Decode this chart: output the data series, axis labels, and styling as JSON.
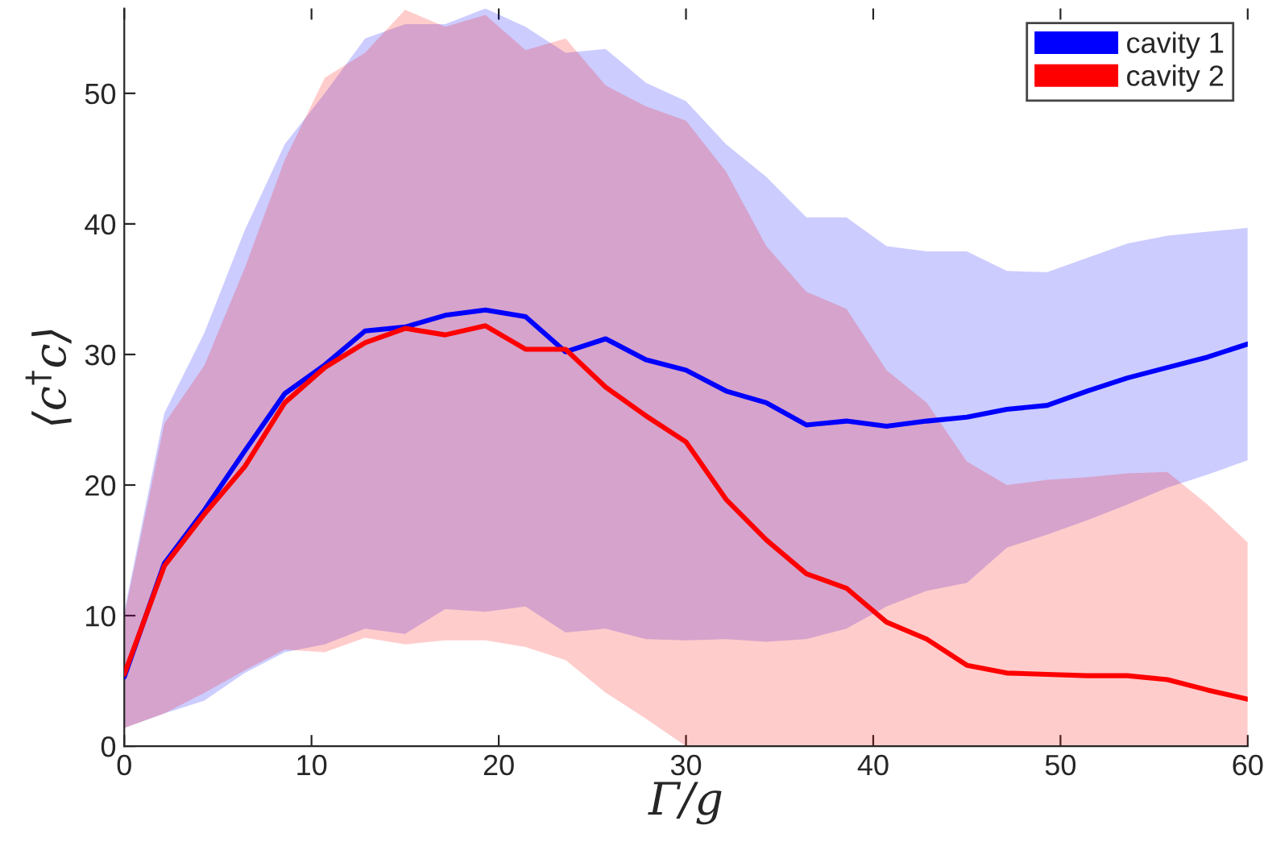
{
  "chart_data": {
    "type": "line",
    "xlabel": "Γ/g",
    "ylabel": "⟨c$^{†}$c⟩",
    "x": [
      0,
      2.14,
      4.29,
      6.43,
      8.57,
      10.71,
      12.86,
      15,
      17.14,
      19.29,
      21.43,
      23.57,
      25.71,
      27.86,
      30,
      32.14,
      34.29,
      36.43,
      38.57,
      40.71,
      42.86,
      45,
      47.14,
      49.29,
      51.43,
      53.57,
      55.71,
      57.86,
      60
    ],
    "series": [
      {
        "name": "cavity 1",
        "color": "#0000ff",
        "values": [
          5.3,
          14.0,
          18.1,
          22.6,
          27.0,
          29.2,
          31.8,
          32.1,
          33.0,
          33.4,
          32.9,
          30.2,
          31.2,
          29.6,
          28.8,
          27.2,
          26.3,
          24.6,
          24.9,
          24.5,
          24.9,
          25.2,
          25.8,
          26.1,
          27.2,
          28.2,
          29.0,
          29.8,
          30.8
        ],
        "upper": [
          10.3,
          25.5,
          31.7,
          39.5,
          46.1,
          50.0,
          54.2,
          55.3,
          55.3,
          56.5,
          55.1,
          53.1,
          53.4,
          50.8,
          49.4,
          46.1,
          43.6,
          40.5,
          40.5,
          38.3,
          37.9,
          37.9,
          36.4,
          36.3,
          37.4,
          38.5,
          39.1,
          39.4,
          39.7
        ],
        "lower": [
          1.4,
          2.5,
          3.5,
          5.6,
          7.2,
          7.8,
          9.0,
          8.6,
          10.5,
          10.3,
          10.7,
          8.7,
          9.0,
          8.2,
          8.1,
          8.2,
          8.0,
          8.2,
          9.0,
          10.7,
          11.9,
          12.5,
          15.2,
          16.2,
          17.3,
          18.5,
          19.8,
          20.8,
          21.9
        ]
      },
      {
        "name": "cavity 2",
        "color": "#ff0000",
        "values": [
          5.5,
          13.8,
          17.8,
          21.4,
          26.3,
          29.0,
          30.9,
          32.0,
          31.5,
          32.2,
          30.4,
          30.4,
          27.5,
          25.3,
          23.3,
          18.9,
          15.8,
          13.2,
          12.1,
          9.5,
          8.2,
          6.2,
          5.6,
          5.5,
          5.4,
          5.4,
          5.1,
          4.3,
          3.6
        ],
        "upper": [
          10.0,
          24.7,
          29.2,
          36.6,
          44.9,
          51.2,
          53.1,
          56.4,
          55.1,
          56.0,
          53.3,
          54.2,
          50.6,
          49.0,
          47.9,
          44.0,
          38.3,
          34.8,
          33.5,
          28.8,
          26.3,
          21.8,
          20.0,
          20.4,
          20.6,
          20.9,
          21.0,
          18.5,
          15.6
        ],
        "lower": [
          1.4,
          2.5,
          4.1,
          5.8,
          7.4,
          7.2,
          8.3,
          7.8,
          8.1,
          8.1,
          7.6,
          6.6,
          4.1,
          2.1,
          0,
          0,
          0,
          0,
          0,
          0,
          0,
          0,
          0,
          0,
          0,
          0,
          0,
          0,
          0
        ]
      }
    ],
    "xlim": [
      0,
      60
    ],
    "ylim": [
      0,
      56.5
    ],
    "xticks": [
      0,
      10,
      20,
      30,
      40,
      50,
      60
    ],
    "yticks": [
      0,
      10,
      20,
      30,
      40,
      50
    ],
    "grid": false,
    "legend": "top right",
    "line_style": "solid",
    "marker": "none"
  }
}
